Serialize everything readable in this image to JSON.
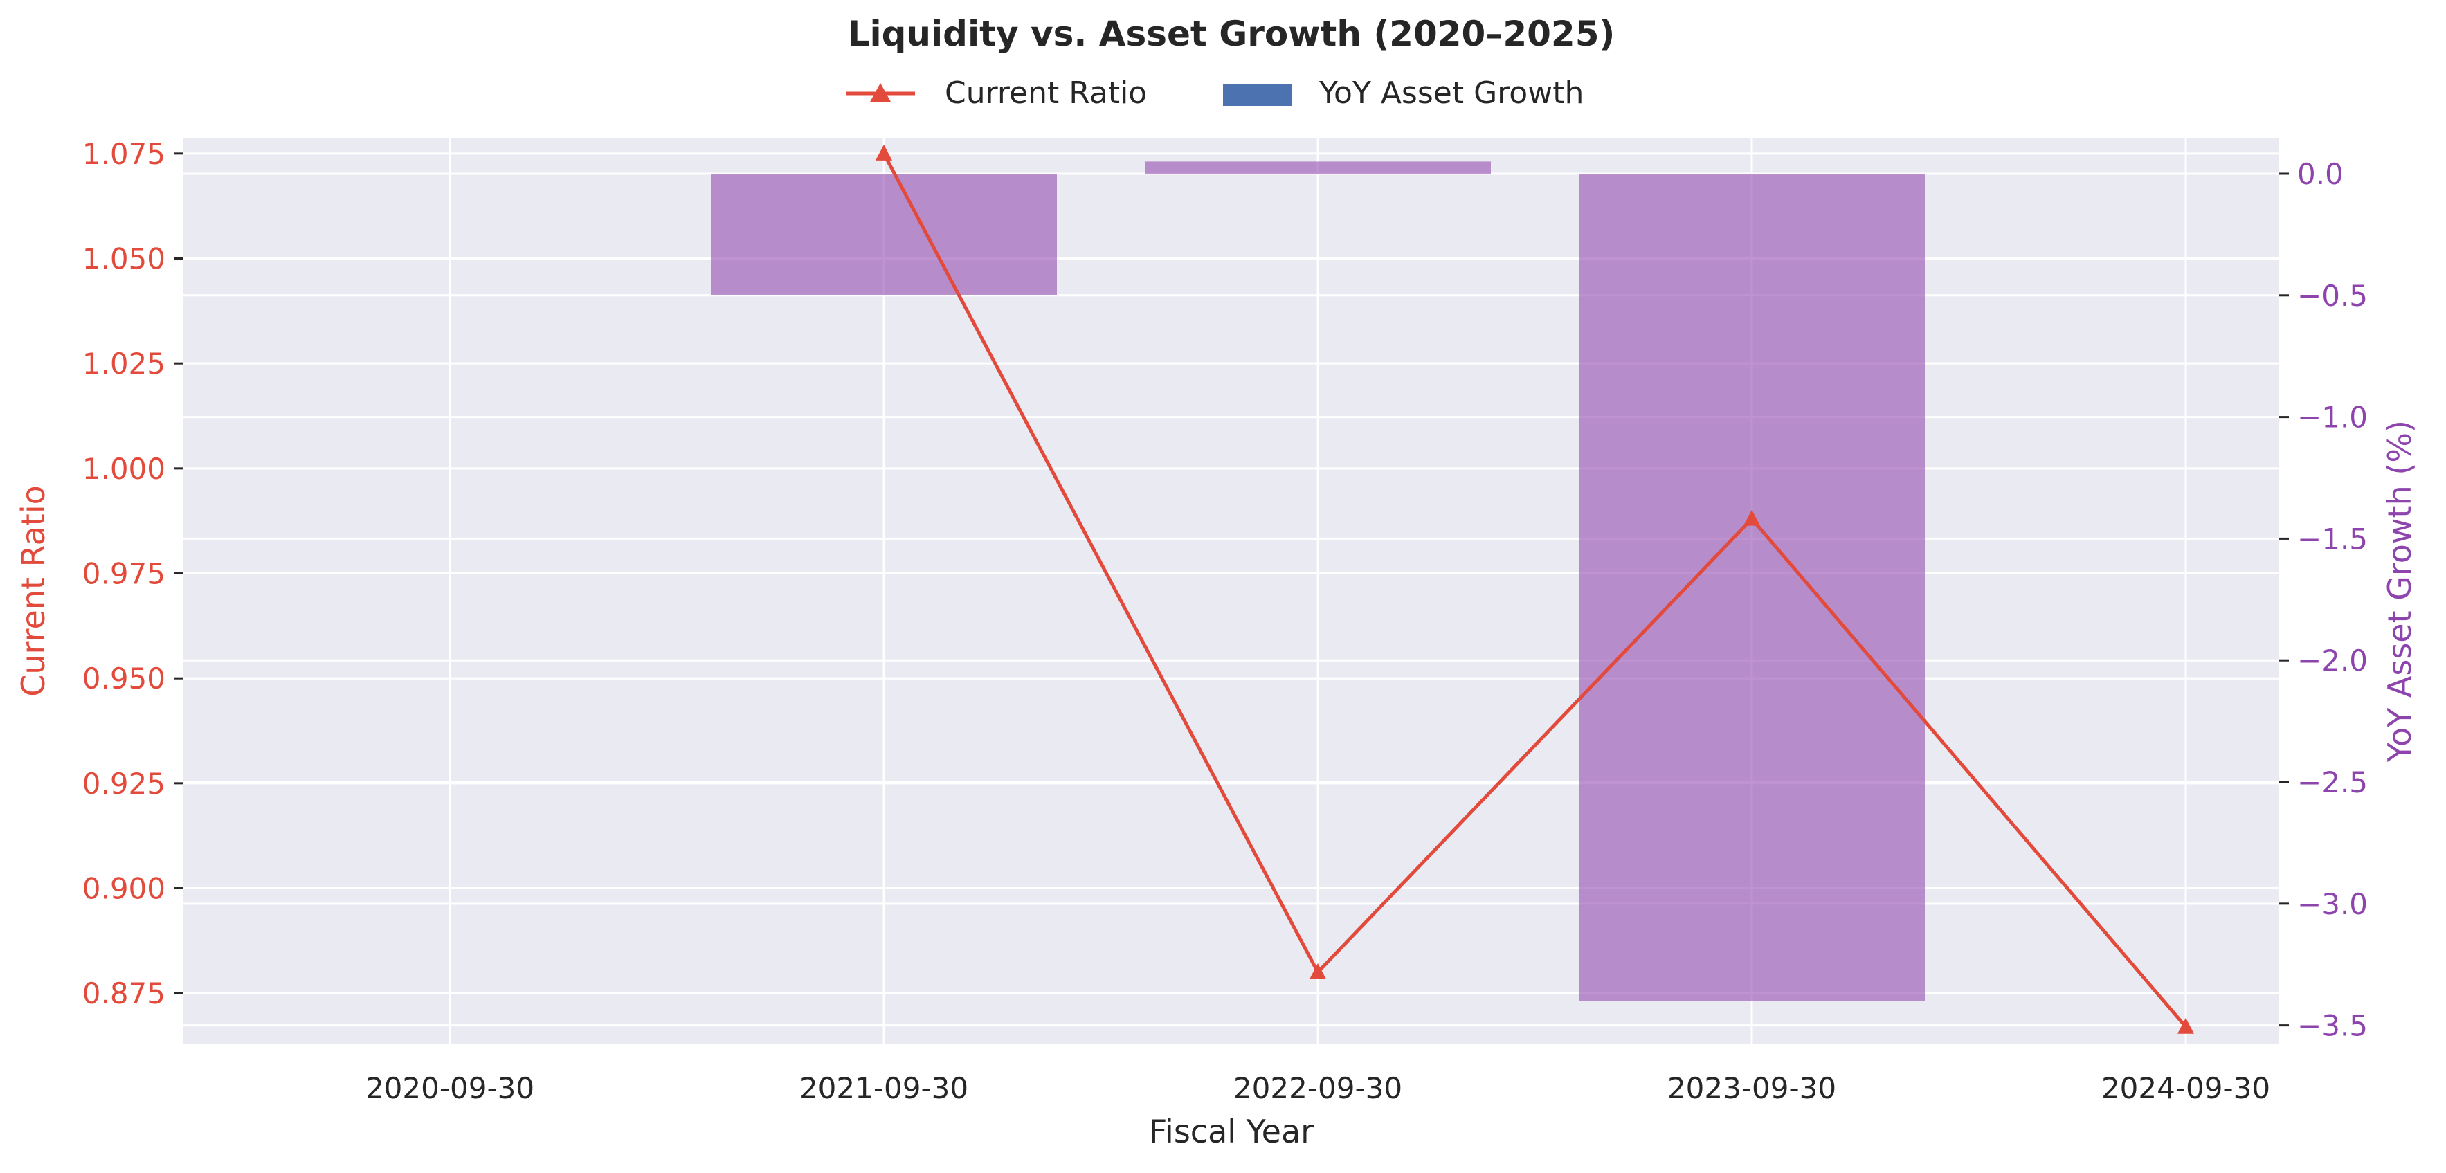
{
  "chart_data": {
    "type": "bar+line",
    "title": "Liquidity vs. Asset Growth (2020–2025)",
    "xlabel": "Fiscal Year",
    "categories": [
      "2020-09-30",
      "2021-09-30",
      "2022-09-30",
      "2023-09-30",
      "2024-09-30"
    ],
    "legend": {
      "placement": "top-center",
      "entries": [
        "Current Ratio",
        "YoY Asset Growth"
      ]
    },
    "grid": true,
    "series": [
      {
        "name": "Current Ratio",
        "type": "line",
        "marker": "triangle",
        "axis": "left",
        "color": "#e24a3b",
        "values": [
          null,
          1.075,
          0.88,
          0.988,
          0.867
        ]
      },
      {
        "name": "YoY Asset Growth",
        "type": "bar",
        "axis": "right",
        "color": "#9b59b6",
        "legend_color": "#4c72b0",
        "values": [
          null,
          -0.5,
          0.05,
          -3.4,
          null
        ]
      }
    ],
    "y_left": {
      "label": "Current Ratio",
      "color": "#e24a3b",
      "ylim": [
        0.863,
        1.0786
      ],
      "ticks": [
        "0.875",
        "0.900",
        "0.925",
        "0.950",
        "0.975",
        "1.000",
        "1.025",
        "1.050",
        "1.075"
      ]
    },
    "y_right": {
      "label": "YoY Asset Growth (%)",
      "color": "#8e44ad",
      "ylim": [
        -3.575,
        0.145
      ],
      "ticks": [
        "−3.5",
        "−3.0",
        "−2.5",
        "−2.0",
        "−1.5",
        "−1.0",
        "−0.5",
        "0.0"
      ]
    }
  }
}
